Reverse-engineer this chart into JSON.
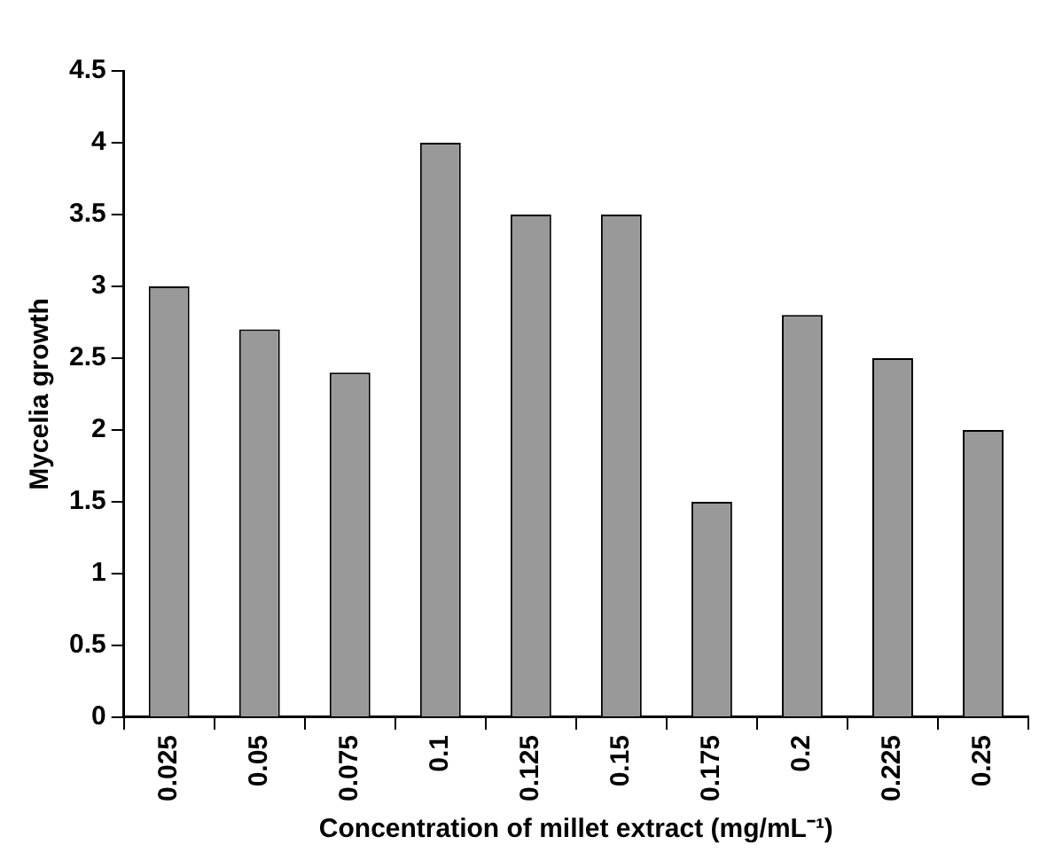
{
  "chart_data": {
    "type": "bar",
    "xlabel": "Concentration of millet extract (mg/mL⁻¹)",
    "ylabel": "Mycelia growth",
    "categories": [
      "0.025",
      "0.05",
      "0.075",
      "0.1",
      "0.125",
      "0.15",
      "0.175",
      "0.2",
      "0.225",
      "0.25"
    ],
    "values": [
      3,
      2.7,
      2.4,
      4,
      3.5,
      3.5,
      1.5,
      2.8,
      2.5,
      2
    ],
    "color": "#999999",
    "ylim": [
      0,
      4.5
    ],
    "yticks": [
      0,
      0.5,
      1,
      1.5,
      2,
      2.5,
      3,
      3.5,
      4,
      4.5
    ],
    "grid": false,
    "legend": false
  }
}
